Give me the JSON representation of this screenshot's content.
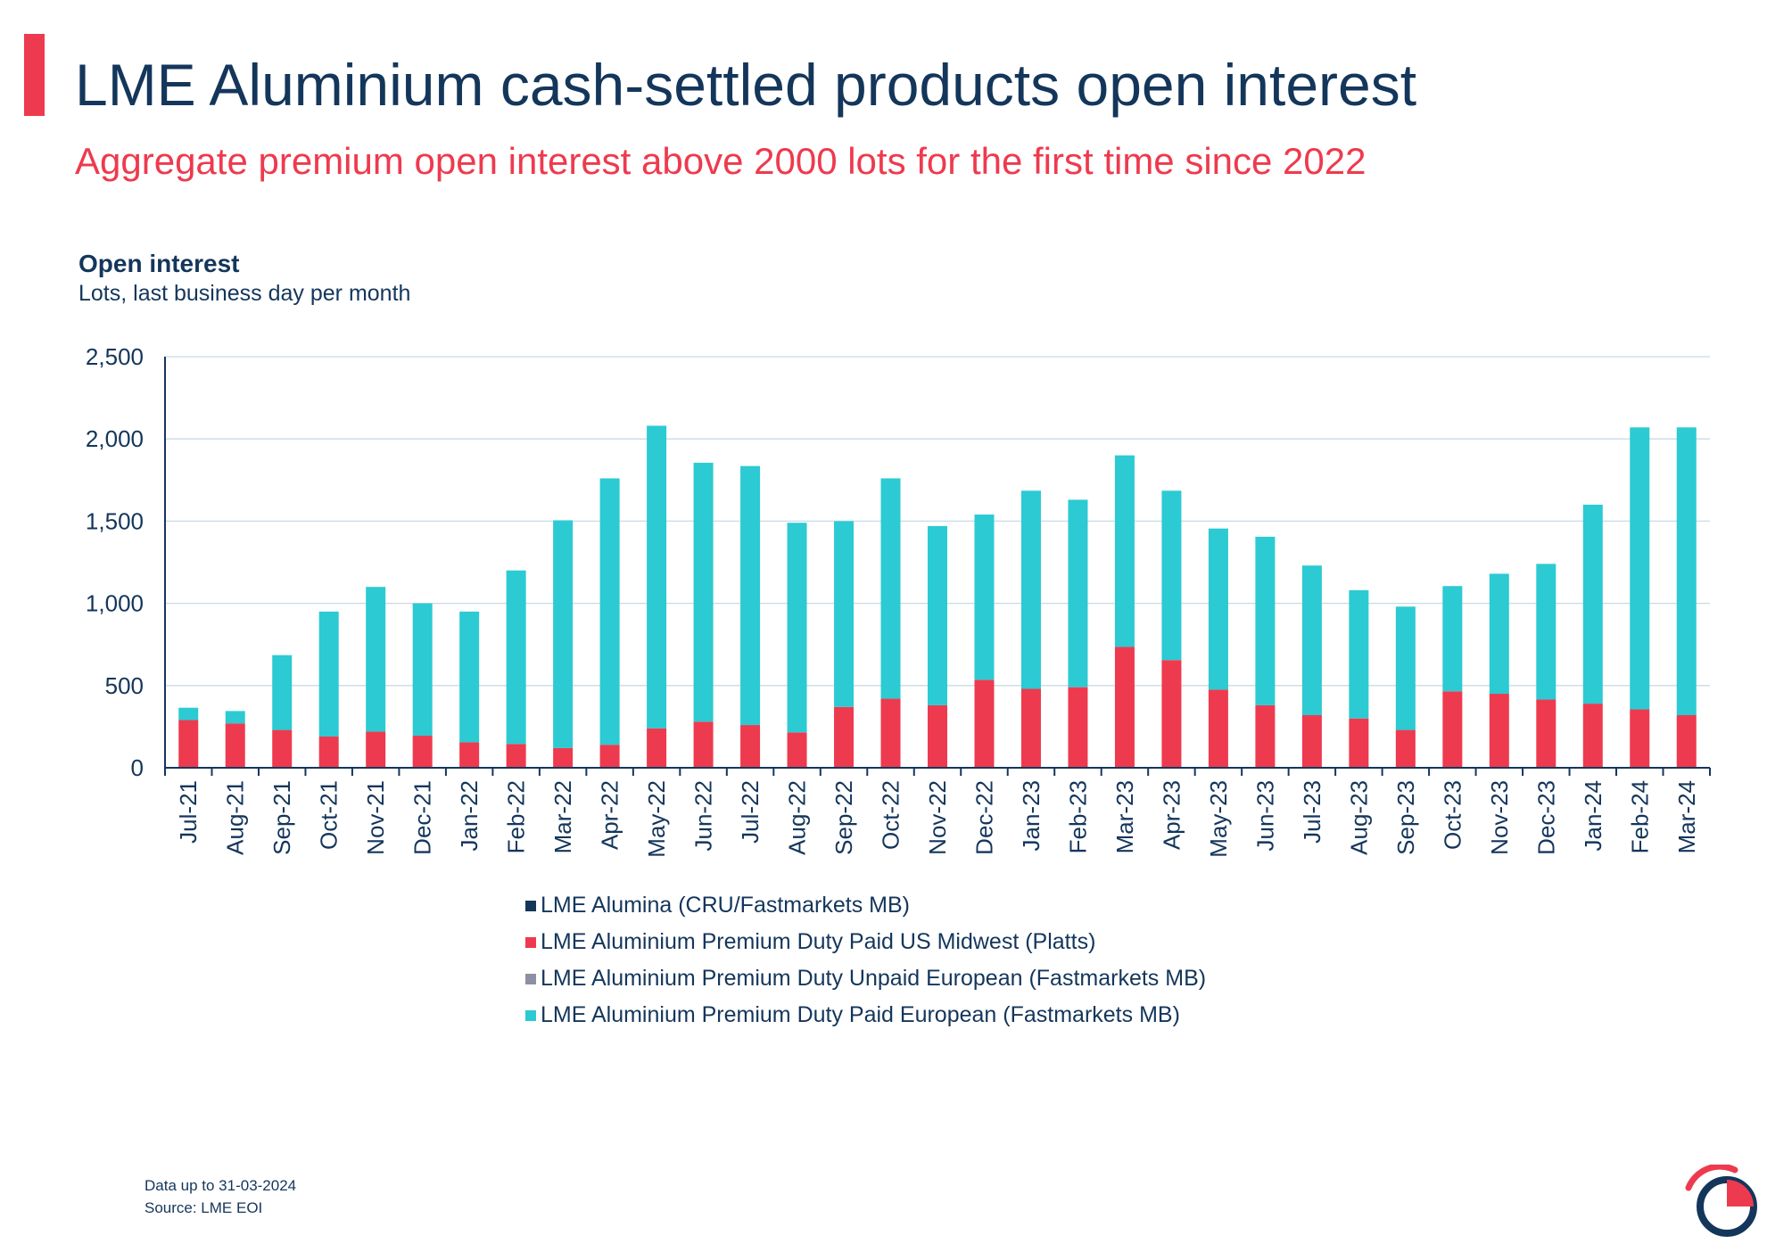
{
  "header": {
    "title": "LME Aluminium cash-settled products open interest",
    "subtitle": "Aggregate premium open interest above 2000 lots for the first time since 2022"
  },
  "chart_header": {
    "title": "Open interest",
    "subtitle": "Lots, last business day per month"
  },
  "legend": [
    {
      "label": "LME Alumina (CRU/Fastmarkets MB)",
      "color": "#14365b"
    },
    {
      "label": "LME Aluminium Premium Duty Paid US Midwest (Platts)",
      "color": "#ee3a4e"
    },
    {
      "label": "LME Aluminium Premium Duty Unpaid European (Fastmarkets MB)",
      "color": "#8e8ea4"
    },
    {
      "label": "LME Aluminium Premium Duty Paid European (Fastmarkets MB)",
      "color": "#2ccad3"
    }
  ],
  "footer": {
    "data_date": "Data up to 31-03-2024",
    "source": "Source: LME EOI"
  },
  "chart_data": {
    "type": "bar",
    "stacked": true,
    "categories": [
      "Jul-21",
      "Aug-21",
      "Sep-21",
      "Oct-21",
      "Nov-21",
      "Dec-21",
      "Jan-22",
      "Feb-22",
      "Mar-22",
      "Apr-22",
      "May-22",
      "Jun-22",
      "Jul-22",
      "Aug-22",
      "Sep-22",
      "Oct-22",
      "Nov-22",
      "Dec-22",
      "Jan-23",
      "Feb-23",
      "Mar-23",
      "Apr-23",
      "May-23",
      "Jun-23",
      "Jul-23",
      "Aug-23",
      "Sep-23",
      "Oct-23",
      "Nov-23",
      "Dec-23",
      "Jan-24",
      "Feb-24",
      "Mar-24"
    ],
    "series": [
      {
        "name": "LME Alumina (CRU/Fastmarkets MB)",
        "color": "#14365b",
        "values": [
          0,
          0,
          0,
          0,
          0,
          0,
          0,
          0,
          0,
          0,
          0,
          0,
          0,
          0,
          0,
          0,
          0,
          0,
          0,
          0,
          0,
          0,
          0,
          0,
          0,
          0,
          0,
          0,
          0,
          0,
          0,
          0,
          0
        ]
      },
      {
        "name": "LME Aluminium Premium Duty Paid US Midwest (Platts)",
        "color": "#ee3a4e",
        "values": [
          290,
          270,
          230,
          190,
          220,
          195,
          155,
          145,
          120,
          140,
          240,
          280,
          260,
          215,
          370,
          420,
          380,
          535,
          480,
          490,
          735,
          655,
          475,
          380,
          320,
          300,
          230,
          465,
          450,
          415,
          390,
          355,
          320
        ]
      },
      {
        "name": "LME Aluminium Premium Duty Unpaid European (Fastmarkets MB)",
        "color": "#8e8ea4",
        "values": [
          0,
          0,
          0,
          0,
          0,
          0,
          0,
          0,
          0,
          0,
          0,
          0,
          0,
          0,
          0,
          0,
          0,
          0,
          0,
          0,
          0,
          0,
          0,
          0,
          0,
          0,
          0,
          0,
          0,
          0,
          0,
          0,
          0
        ]
      },
      {
        "name": "LME Aluminium Premium Duty Paid European (Fastmarkets MB)",
        "color": "#2ccad3",
        "values": [
          75,
          75,
          455,
          760,
          880,
          805,
          795,
          1055,
          1385,
          1620,
          1840,
          1575,
          1575,
          1275,
          1130,
          1340,
          1090,
          1005,
          1205,
          1140,
          1165,
          1030,
          980,
          1025,
          910,
          780,
          750,
          640,
          730,
          825,
          1210,
          1715,
          1750
        ]
      }
    ],
    "yticks": [
      0,
      500,
      1000,
      1500,
      2000,
      2500
    ],
    "ytick_labels": [
      "0",
      "500",
      "1,000",
      "1,500",
      "2,000",
      "2,500"
    ],
    "ylim": [
      0,
      2500
    ],
    "grid": true,
    "legend_position": "bottom"
  }
}
